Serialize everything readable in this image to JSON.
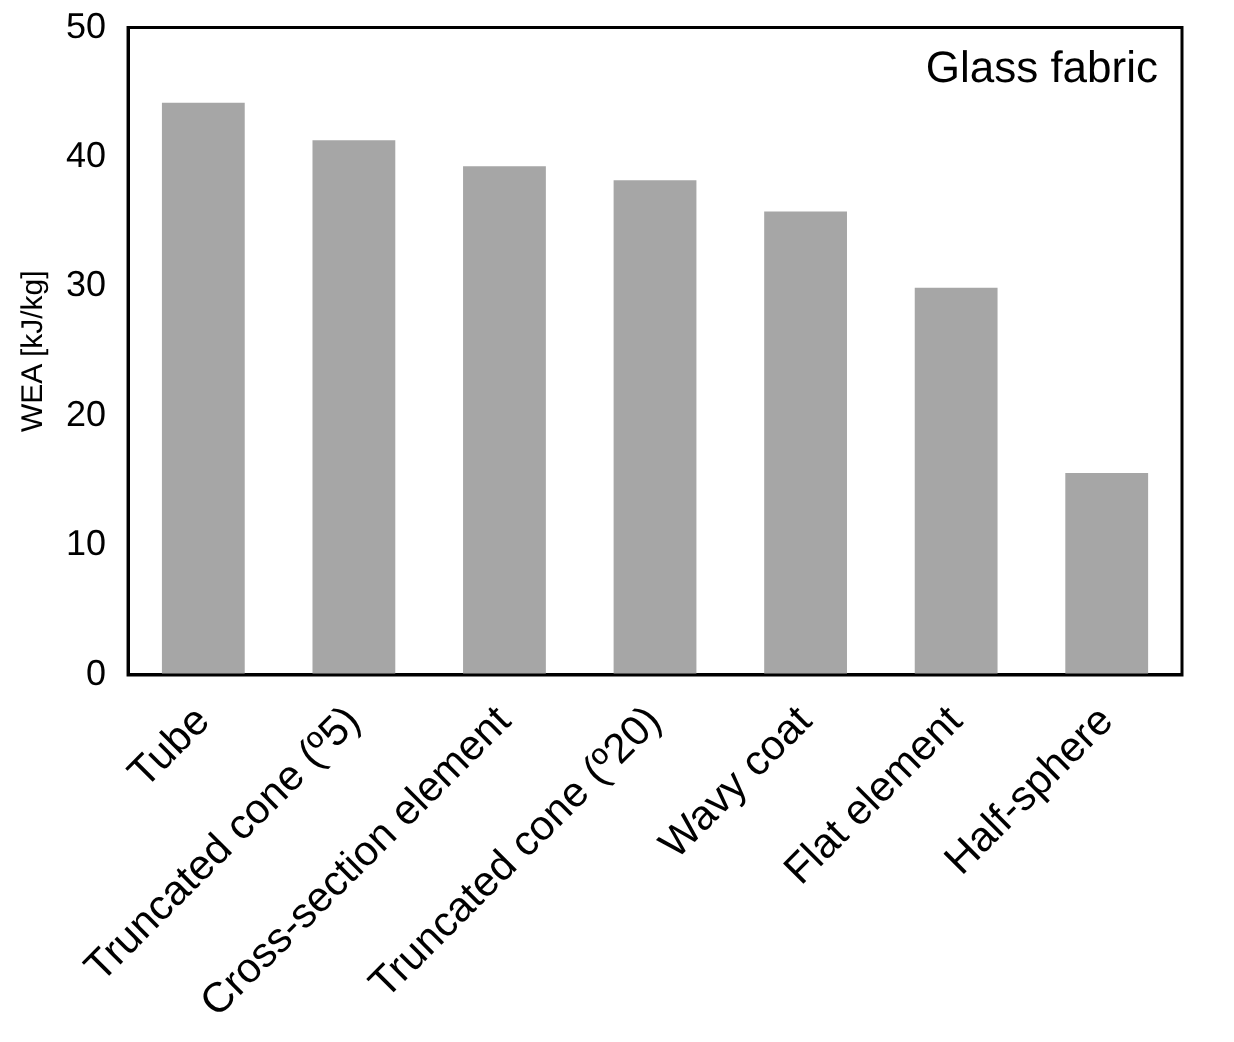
{
  "chart_data": {
    "type": "bar",
    "ylabel": "WEA [kJ/kg]",
    "annotations": [
      "Glass fabric"
    ],
    "categories": [
      "Tube",
      "Truncated cone (º5)",
      "Cross-section element",
      "Truncated cone (º20)",
      "Wavy coat",
      "Flat element",
      "Half-sphere"
    ],
    "values": [
      44.2,
      41.3,
      39.3,
      38.2,
      35.8,
      29.9,
      15.6
    ],
    "color": "#a6a6a6",
    "ylim": [
      0,
      50
    ],
    "yticks": [
      0,
      10,
      20,
      30,
      40,
      50
    ],
    "grid": false
  }
}
